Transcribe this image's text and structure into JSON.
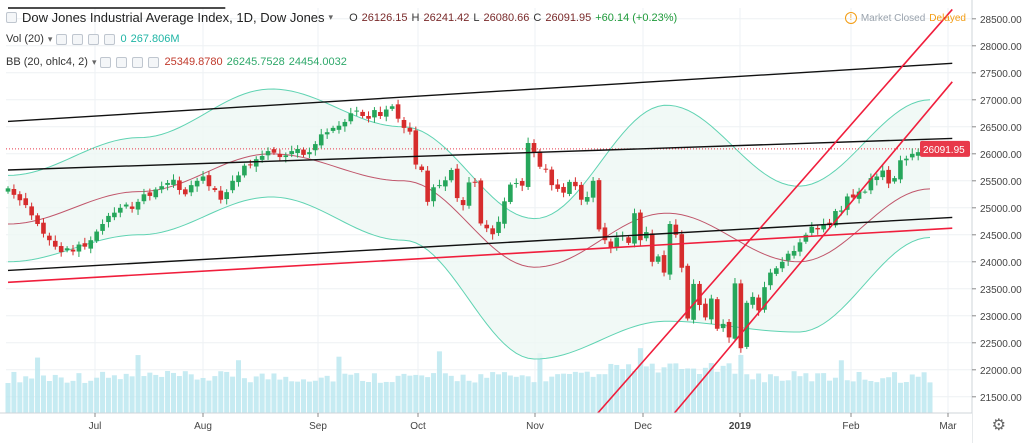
{
  "header": {
    "title": "Dow Jones Industrial Average Index, 1D, Dow Jones",
    "open_label": "O",
    "open": "26126.15",
    "high_label": "H",
    "high": "26241.42",
    "low_label": "L",
    "low": "26080.66",
    "close_label": "C",
    "close": "26091.95",
    "change": "+60.14 (+0.23%)"
  },
  "volume_legend": {
    "label": "Vol (20)",
    "value1": "0",
    "value2": "267.806M"
  },
  "bb_legend": {
    "label": "BB (20, ohlc4, 2)",
    "basis": "25349.8780",
    "upper": "26245.7528",
    "lower": "24454.0032"
  },
  "status": {
    "market": "Market Closed",
    "delayed": "Delayed"
  },
  "icons": {
    "settings": "gear-icon",
    "eye": "eye-icon",
    "info": "info-icon"
  },
  "colors": {
    "up": "#26a65b",
    "down": "#d62d2d",
    "bb_band": "#5fd3b2",
    "bb_basis": "#c0566b",
    "volume": "#b8e6ef",
    "trend_black": "#111111",
    "trend_red": "#f01e3c",
    "last_price_bg": "#e8394a"
  },
  "chart_data": {
    "type": "candlestick",
    "title": "Dow Jones Industrial Average Index, 1D, Dow Jones",
    "ylim": [
      21200,
      28700
    ],
    "y_ticks": [
      21500,
      22000,
      22500,
      23000,
      23500,
      24000,
      24500,
      25000,
      25500,
      26000,
      26500,
      27000,
      27500,
      28000,
      28500
    ],
    "x_tick_labels": [
      "Jul",
      "Aug",
      "Sep",
      "Oct",
      "Nov",
      "Dec",
      "2019",
      "Feb",
      "Mar"
    ],
    "last_price": "26091.95",
    "grid": true,
    "series": [
      {
        "name": "price",
        "closes": [
          25360,
          25240,
          25140,
          25050,
          24860,
          24700,
          24520,
          24400,
          24280,
          24180,
          24250,
          24190,
          24320,
          24280,
          24400,
          24560,
          24700,
          24850,
          24910,
          25000,
          25060,
          24980,
          25110,
          25250,
          25220,
          25340,
          25400,
          25460,
          25520,
          25330,
          25250,
          25420,
          25500,
          25580,
          25400,
          25330,
          25150,
          25290,
          25500,
          25600,
          25780,
          25800,
          25900,
          25960,
          26050,
          26020,
          25940,
          25970,
          26050,
          26090,
          25980,
          26030,
          26180,
          26360,
          26400,
          26480,
          26520,
          26590,
          26750,
          26800,
          26700,
          26650,
          26810,
          26700,
          26820,
          26880,
          26650,
          26480,
          26410,
          25800,
          25700,
          25110,
          25380,
          25420,
          25510,
          25700,
          25180,
          25050,
          25470,
          25470,
          24710,
          24620,
          24510,
          24740,
          25120,
          25430,
          25460,
          25410,
          26200,
          26020,
          25760,
          25720,
          25420,
          25350,
          25280,
          25480,
          25400,
          25150,
          25200,
          25500,
          24600,
          24400,
          24260,
          24450,
          24490,
          24350,
          24900,
          24400,
          24550,
          24000,
          24100,
          23800,
          24700,
          24500,
          23890,
          22950,
          23590,
          23200,
          22970,
          23320,
          22760,
          22850,
          22600,
          23600,
          22400,
          23240,
          23350,
          23100,
          23530,
          23800,
          23880,
          24000,
          24150,
          24200,
          24360,
          24500,
          24650,
          24600,
          24700,
          24710,
          24940,
          24950,
          25210,
          25190,
          25300,
          25300,
          25550,
          25580,
          25690,
          25450,
          25550,
          25880,
          25910,
          26000,
          26030,
          26060,
          26090
        ]
      },
      {
        "name": "upper_band_anchor",
        "values": [
          25600,
          26300,
          27200,
          26500,
          24800,
          26900,
          25400,
          27000
        ]
      },
      {
        "name": "basis_anchor",
        "values": [
          24700,
          25300,
          26000,
          25500,
          23900,
          24900,
          24000,
          25350
        ]
      },
      {
        "name": "lower_band_anchor",
        "values": [
          24000,
          24500,
          25200,
          24400,
          22200,
          22900,
          22700,
          24450
        ]
      }
    ],
    "trendlines": [
      {
        "color": "black",
        "from": [
          0,
          26600
        ],
        "to": [
          153,
          27630
        ]
      },
      {
        "color": "black",
        "from": [
          0,
          25700
        ],
        "to": [
          153,
          26260
        ]
      },
      {
        "color": "black",
        "from": [
          0,
          23840
        ],
        "to": [
          153,
          24780
        ]
      },
      {
        "color": "black",
        "from": [
          0,
          28700
        ],
        "to": [
          30,
          28700
        ]
      },
      {
        "color": "red",
        "from": [
          0,
          23620
        ],
        "to": [
          153,
          24580
        ]
      },
      {
        "color": "red",
        "from": [
          99,
          21100
        ],
        "to": [
          153,
          27830
        ]
      },
      {
        "color": "red",
        "from": [
          112,
          21100
        ],
        "to": [
          153,
          26450
        ]
      }
    ]
  }
}
